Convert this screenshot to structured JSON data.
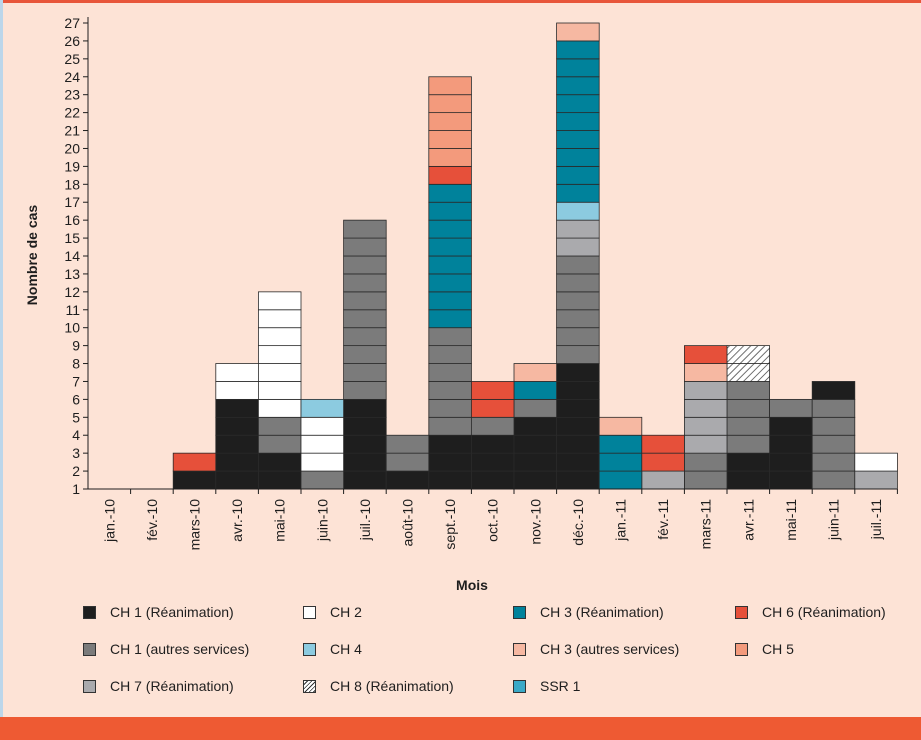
{
  "chart_data": {
    "type": "bar",
    "stacked": true,
    "title": "",
    "xlabel": "Mois",
    "ylabel": "Nombre de cas",
    "ylim": [
      1,
      27
    ],
    "y_ticks": [
      1,
      2,
      3,
      4,
      5,
      6,
      7,
      8,
      9,
      10,
      11,
      12,
      13,
      14,
      15,
      16,
      17,
      18,
      19,
      20,
      21,
      22,
      23,
      24,
      25,
      26,
      27
    ],
    "legend_position": "bottom",
    "categories": [
      "jan.-10",
      "fév.-10",
      "mars-10",
      "avr.-10",
      "mai-10",
      "juin-10",
      "juil.-10",
      "août-10",
      "sept.-10",
      "oct.-10",
      "nov.-10",
      "déc.-10",
      "jan.-11",
      "fév.-11",
      "mars-11",
      "avr.-11",
      "mai-11",
      "juin-11",
      "juil.-11"
    ],
    "series": [
      {
        "name": "CH 1 (Réanimation)",
        "color": "#1e1e1e",
        "values": [
          0,
          0,
          1,
          5,
          2,
          0,
          5,
          1,
          3,
          3,
          4,
          7,
          0,
          0,
          0,
          2,
          4,
          0,
          0
        ]
      },
      {
        "name": "CH 1 (autres services)",
        "color": "#7b7b7b",
        "values": [
          0,
          0,
          0,
          0,
          2,
          1,
          10,
          2,
          6,
          1,
          1,
          6,
          0,
          0,
          2,
          4,
          1,
          5,
          0
        ]
      },
      {
        "name": "CH 7 (Réanimation)",
        "color": "#aaaaad",
        "values": [
          0,
          0,
          0,
          0,
          0,
          0,
          0,
          0,
          0,
          0,
          0,
          2,
          0,
          1,
          4,
          0,
          0,
          0,
          1
        ]
      },
      {
        "name": "CH 2",
        "color": "#ffffff",
        "values": [
          0,
          0,
          0,
          2,
          7,
          3,
          0,
          0,
          0,
          0,
          0,
          0,
          0,
          0,
          0,
          0,
          0,
          0,
          1
        ]
      },
      {
        "name": "CH 4",
        "color": "#8ccbe0",
        "values": [
          0,
          0,
          0,
          0,
          0,
          1,
          0,
          0,
          0,
          0,
          0,
          1,
          0,
          0,
          0,
          0,
          0,
          0,
          0
        ]
      },
      {
        "name": "CH 8 (Réanimation)",
        "color": "#ffffff",
        "hatched": true,
        "values": [
          0,
          0,
          0,
          0,
          0,
          0,
          0,
          0,
          0,
          0,
          0,
          0,
          0,
          0,
          0,
          2,
          0,
          0,
          0
        ]
      },
      {
        "name": "CH 3 (Réanimation)",
        "color": "#00829b",
        "values": [
          0,
          0,
          0,
          0,
          0,
          0,
          0,
          0,
          8,
          0,
          1,
          9,
          3,
          0,
          0,
          0,
          0,
          0,
          0
        ]
      },
      {
        "name": "CH 3 (autres services)",
        "color": "#f6b8a2",
        "values": [
          0,
          0,
          0,
          0,
          0,
          0,
          0,
          0,
          0,
          0,
          1,
          1,
          1,
          0,
          1,
          0,
          0,
          0,
          0
        ]
      },
      {
        "name": "SSR 1",
        "color": "#3aa9c7",
        "values": [
          0,
          0,
          0,
          0,
          0,
          0,
          0,
          0,
          0,
          0,
          0,
          0,
          0,
          0,
          0,
          0,
          0,
          0,
          0
        ]
      },
      {
        "name": "CH 6 (Réanimation)",
        "color": "#e6503a",
        "values": [
          0,
          0,
          1,
          0,
          0,
          0,
          0,
          0,
          1,
          2,
          0,
          0,
          0,
          2,
          1,
          0,
          0,
          0,
          0
        ]
      },
      {
        "name": "CH 5",
        "color": "#f39a7c",
        "values": [
          0,
          0,
          0,
          0,
          0,
          0,
          0,
          0,
          5,
          0,
          0,
          0,
          0,
          0,
          0,
          0,
          0,
          0,
          0
        ]
      },
      {
        "name": "CH 1 (autres services)",
        "color": "#1e1e1e",
        "legend": false,
        "values": [
          0,
          0,
          0,
          0,
          0,
          0,
          0,
          0,
          0,
          0,
          0,
          0,
          0,
          0,
          0,
          0,
          0,
          1,
          0
        ]
      }
    ],
    "legend": [
      {
        "label": "CH 1 (Réanimation)",
        "color": "#1e1e1e"
      },
      {
        "label": "CH 2",
        "color": "#ffffff"
      },
      {
        "label": "CH 3 (Réanimation)",
        "color": "#00829b"
      },
      {
        "label": "CH 6 (Réanimation)",
        "color": "#e6503a"
      },
      {
        "label": "CH 1 (autres services)",
        "color": "#7b7b7b"
      },
      {
        "label": "CH 4",
        "color": "#8ccbe0"
      },
      {
        "label": "CH 3 (autres services)",
        "color": "#f6b8a2"
      },
      {
        "label": "CH 5",
        "color": "#f39a7c"
      },
      {
        "label": "CH 7 (Réanimation)",
        "color": "#aaaaad"
      },
      {
        "label": "CH 8 (Réanimation)",
        "color": "#ffffff",
        "hatched": true
      },
      {
        "label": "SSR 1",
        "color": "#3aa9c7"
      }
    ]
  }
}
